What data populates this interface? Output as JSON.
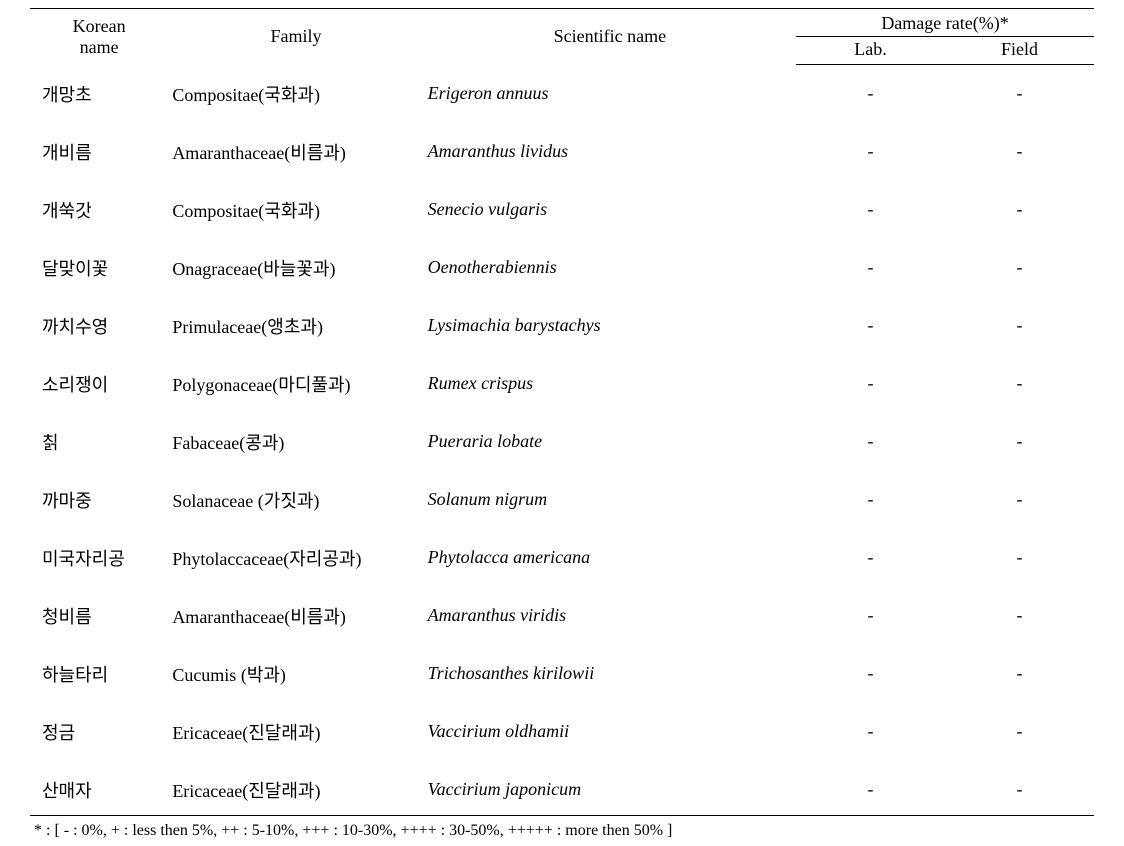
{
  "table": {
    "headers": {
      "korean_name_line1": "Korean",
      "korean_name_line2": "name",
      "family": "Family",
      "scientific_name": "Scientific name",
      "damage_rate": "Damage rate(%)*",
      "lab": "Lab.",
      "field": "Field"
    },
    "rows": [
      {
        "korean": "개망초",
        "family": "Compositae(국화과)",
        "scientific": "Erigeron annuus",
        "lab": "-",
        "field": "-"
      },
      {
        "korean": "개비름",
        "family": "Amaranthaceae(비름과)",
        "scientific": "Amaranthus lividus",
        "lab": "-",
        "field": "-"
      },
      {
        "korean": "개쑥갓",
        "family": "Compositae(국화과)",
        "scientific": "Senecio vulgaris",
        "lab": "-",
        "field": "-"
      },
      {
        "korean": "달맞이꽃",
        "family": "Onagraceae(바늘꽃과)",
        "scientific": "Oenotherabiennis",
        "lab": "-",
        "field": "-"
      },
      {
        "korean": "까치수영",
        "family": "Primulaceae(앵초과)",
        "scientific": "Lysimachia barystachys",
        "lab": "-",
        "field": "-"
      },
      {
        "korean": "소리쟁이",
        "family": "Polygonaceae(마디풀과)",
        "scientific": "Rumex crispus",
        "lab": "-",
        "field": "-"
      },
      {
        "korean": "칡",
        "family": "Fabaceae(콩과)",
        "scientific": "Pueraria lobate",
        "lab": "-",
        "field": "-"
      },
      {
        "korean": "까마중",
        "family": "Solanaceae (가짓과)",
        "scientific": "Solanum nigrum",
        "lab": "-",
        "field": "-"
      },
      {
        "korean": "미국자리공",
        "family": "Phytolaccaceae(자리공과)",
        "scientific": "Phytolacca americana",
        "lab": "-",
        "field": "-"
      },
      {
        "korean": "청비름",
        "family": "Amaranthaceae(비름과)",
        "scientific": "Amaranthus viridis",
        "lab": "-",
        "field": "-"
      },
      {
        "korean": "하늘타리",
        "family": "Cucumis (박과)",
        "scientific": "Trichosanthes kirilowii",
        "lab": "-",
        "field": "-"
      },
      {
        "korean": "정금",
        "family": "Ericaceae(진달래과)",
        "scientific": "Vaccirium oldhamii",
        "lab": "-",
        "field": "-"
      },
      {
        "korean": "산매자",
        "family": "Ericaceae(진달래과)",
        "scientific": "Vaccirium japonicum",
        "lab": "-",
        "field": "-"
      }
    ],
    "footnote": "* : [ - : 0%, + : less then 5%, ++ : 5-10%, +++ : 10-30%, ++++ : 30-50%, +++++ : more then 50% ]"
  },
  "styling": {
    "font_family": "Times New Roman, Malgun Gothic, serif",
    "font_size_body": 18,
    "font_size_footnote": 16,
    "text_color": "#000000",
    "background_color": "#ffffff",
    "border_color": "#000000",
    "row_padding_vertical": 16,
    "column_widths_pct": {
      "korean": 13,
      "family": 24,
      "scientific": 35,
      "lab": 14,
      "field": 14
    }
  }
}
